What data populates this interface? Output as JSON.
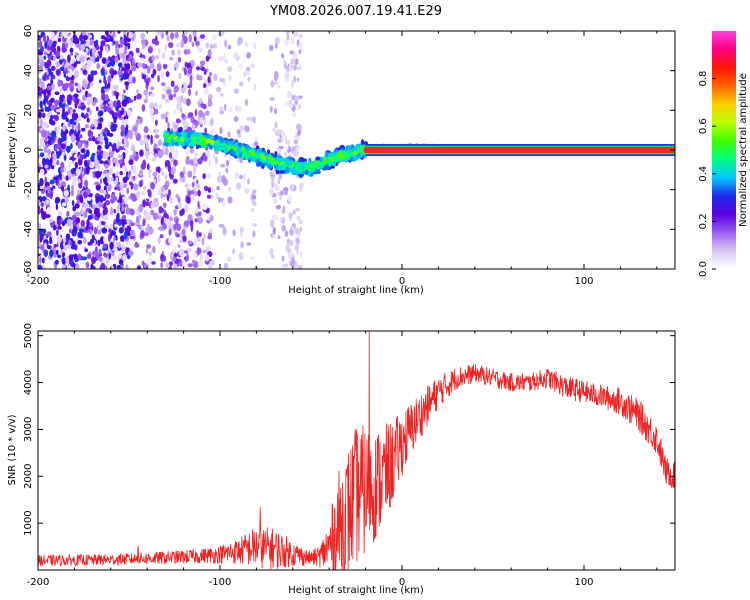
{
  "figure": {
    "title": "YM08.2026.007.19.41.E29"
  },
  "chart_data": [
    {
      "type": "heatmap",
      "xlabel": "Height of straight line (km)",
      "ylabel": "Frequency (Hz)",
      "xlim": [
        -200,
        150
      ],
      "ylim": [
        -60,
        60
      ],
      "x_ticks": [
        "-200",
        "-100",
        "0",
        "100"
      ],
      "y_ticks": [
        "60",
        "40",
        "20",
        "0",
        "-20",
        "-40",
        "-60"
      ],
      "colorbar": {
        "label": "Normalized spectral amplitude",
        "range": [
          0.0,
          1.0
        ],
        "ticks": [
          "0.0",
          "0.2",
          "0.4",
          "0.6",
          "0.8"
        ],
        "colormap": [
          "#ffffff",
          "#d8c8f4",
          "#9a5cf0",
          "#5a00e0",
          "#1f2ce8",
          "#00c8ff",
          "#00ff80",
          "#40ff00",
          "#b8ff00",
          "#ffd000",
          "#ff6400",
          "#ff1400",
          "#ff0080",
          "#ff40e0"
        ]
      },
      "ridge": {
        "description": "frequency trend (Hz) vs height (km)",
        "x": [
          -125,
          -110,
          -100,
          -90,
          -80,
          -70,
          -62,
          -55,
          -50,
          -45,
          -40,
          -35,
          -30,
          -20,
          -10,
          -5,
          0,
          5,
          150
        ],
        "y": [
          6,
          5,
          3,
          0,
          -3,
          -6,
          -8,
          -9,
          -9,
          -7,
          -5,
          -3,
          -2,
          0,
          1,
          1,
          1,
          1,
          0
        ]
      },
      "noise_regions": [
        {
          "from": -200,
          "to": -150,
          "density": "high"
        },
        {
          "from": -150,
          "to": -105,
          "density": "medium"
        },
        {
          "from": -105,
          "to": -80,
          "density": "low"
        },
        {
          "from": -72,
          "to": -55,
          "density": "vertical band"
        }
      ],
      "line_band_hz": [
        -1.5,
        1.5
      ]
    },
    {
      "type": "line",
      "color": "#ee2222",
      "xlabel": "Height of straight line (km)",
      "ylabel": "SNR (10 * v/v)",
      "xlim": [
        -200,
        150
      ],
      "ylim": [
        0,
        5100
      ],
      "x_ticks": [
        "-200",
        "-100",
        "0",
        "100"
      ],
      "y_ticks": [
        "5000",
        "4000",
        "3000",
        "2000",
        "1000"
      ],
      "envelope": {
        "description": "approximate SNR envelope (mean and fluctuation amplitude) vs height",
        "x": [
          -200,
          -160,
          -130,
          -110,
          -100,
          -90,
          -80,
          -70,
          -60,
          -50,
          -45,
          -40,
          -35,
          -30,
          -25,
          -20,
          -15,
          -10,
          -5,
          0,
          10,
          20,
          30,
          40,
          50,
          60,
          70,
          80,
          90,
          100,
          110,
          120,
          130,
          140,
          145,
          150
        ],
        "mean": [
          200,
          220,
          260,
          300,
          330,
          400,
          500,
          450,
          350,
          250,
          300,
          500,
          900,
          1200,
          1600,
          1700,
          1800,
          2000,
          2300,
          2700,
          3300,
          3800,
          4100,
          4200,
          4100,
          4000,
          4000,
          4100,
          3900,
          3800,
          3700,
          3600,
          3300,
          2800,
          2100,
          2000
        ],
        "amp": [
          120,
          120,
          140,
          160,
          200,
          280,
          450,
          450,
          280,
          150,
          250,
          600,
          1200,
          1400,
          1500,
          1400,
          1200,
          1100,
          900,
          700,
          500,
          350,
          250,
          200,
          200,
          200,
          200,
          220,
          250,
          250,
          250,
          300,
          350,
          350,
          300,
          300
        ]
      },
      "spikes": [
        {
          "x": -18,
          "y": 5100
        },
        {
          "x": -78,
          "y": 1350
        },
        {
          "x": -145,
          "y": 500
        }
      ]
    }
  ]
}
